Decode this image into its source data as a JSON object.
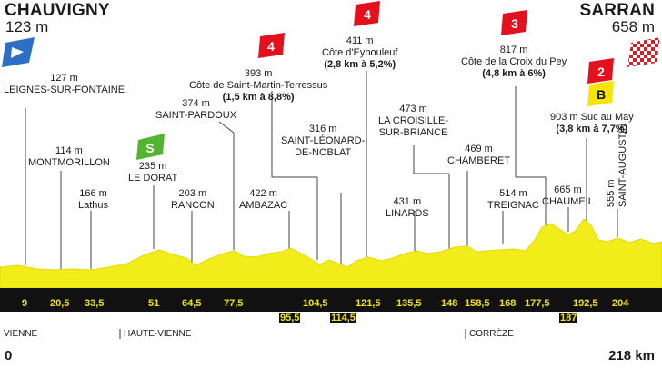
{
  "start": {
    "name": "CHAUVIGNY",
    "altitude": "123 m",
    "km": "0"
  },
  "finish": {
    "name": "SARRAN",
    "altitude": "658 m",
    "km": "218 km"
  },
  "regions": [
    "VIENNE",
    "HAUTE-VIENNE",
    "CORRÈZE"
  ],
  "waypoints": [
    {
      "name": "LEIGNES-SUR-FONTAINE",
      "altitude": "127 m",
      "km": "9"
    },
    {
      "name": "MONTMORILLON",
      "altitude": "114 m",
      "km": "20,5"
    },
    {
      "name": "Lathus",
      "altitude": "166 m",
      "km": "33,5"
    },
    {
      "name": "LE DORAT",
      "altitude": "235 m",
      "km": "51",
      "badge": "S"
    },
    {
      "name": "RANCON",
      "altitude": "203 m",
      "km": "64,5"
    },
    {
      "name": "SAINT-PARDOUX",
      "altitude": "374 m",
      "km": "77,5"
    },
    {
      "name": "AMBAZAC",
      "altitude": "422 m",
      "km": "95,5"
    },
    {
      "name": "Côte de Saint-Martin-Terressus",
      "altitude": "393 m",
      "detail": "(1,5 km à 8,8%)",
      "km": "104,5",
      "badge": "4"
    },
    {
      "name_lines": [
        "SAINT-LÉONARD-",
        "DE-NOBLAT"
      ],
      "altitude": "316 m",
      "km": "114,5"
    },
    {
      "name": "Côte d'Eybouleuf",
      "altitude": "411 m",
      "detail": "(2,8 km à 5,2%)",
      "km": "121,5",
      "badge": "4"
    },
    {
      "name": "LINARDS",
      "altitude": "431 m",
      "km": "135,5"
    },
    {
      "name_lines": [
        "LA CROISILLE-",
        "SUR-BRIANCE"
      ],
      "altitude": "473 m",
      "km": "148"
    },
    {
      "name": "CHAMBERET",
      "altitude": "469 m",
      "km": "158,5"
    },
    {
      "name": "TREIGNAC",
      "altitude": "514 m",
      "km": "168"
    },
    {
      "name": "Côte de la Croix du Pey",
      "altitude": "817 m",
      "detail": "(4,8 km à 6%)",
      "km": "177,5",
      "badge": "3"
    },
    {
      "name": "CHAUMEIL",
      "altitude": "665 m",
      "km": "187"
    },
    {
      "name": "Suc au May",
      "altitude": "903 m",
      "detail": "(3,8 km à 7,7%)",
      "km": "192,5",
      "badge": "2",
      "bonus": "B"
    },
    {
      "name": "SAINT-AUGUSTIN",
      "altitude": "555 m",
      "km": "204"
    }
  ],
  "colors": {
    "profile": "#f2ec1a",
    "profile_edge": "#e2da00",
    "band": "#111111",
    "cat_badge": "#e3101e",
    "sprint_badge": "#53b42f",
    "bonus_badge": "#f5e500",
    "start_flag": "#2c6fc4"
  },
  "icons": [
    "start-flag-icon",
    "finish-flag-icon"
  ]
}
